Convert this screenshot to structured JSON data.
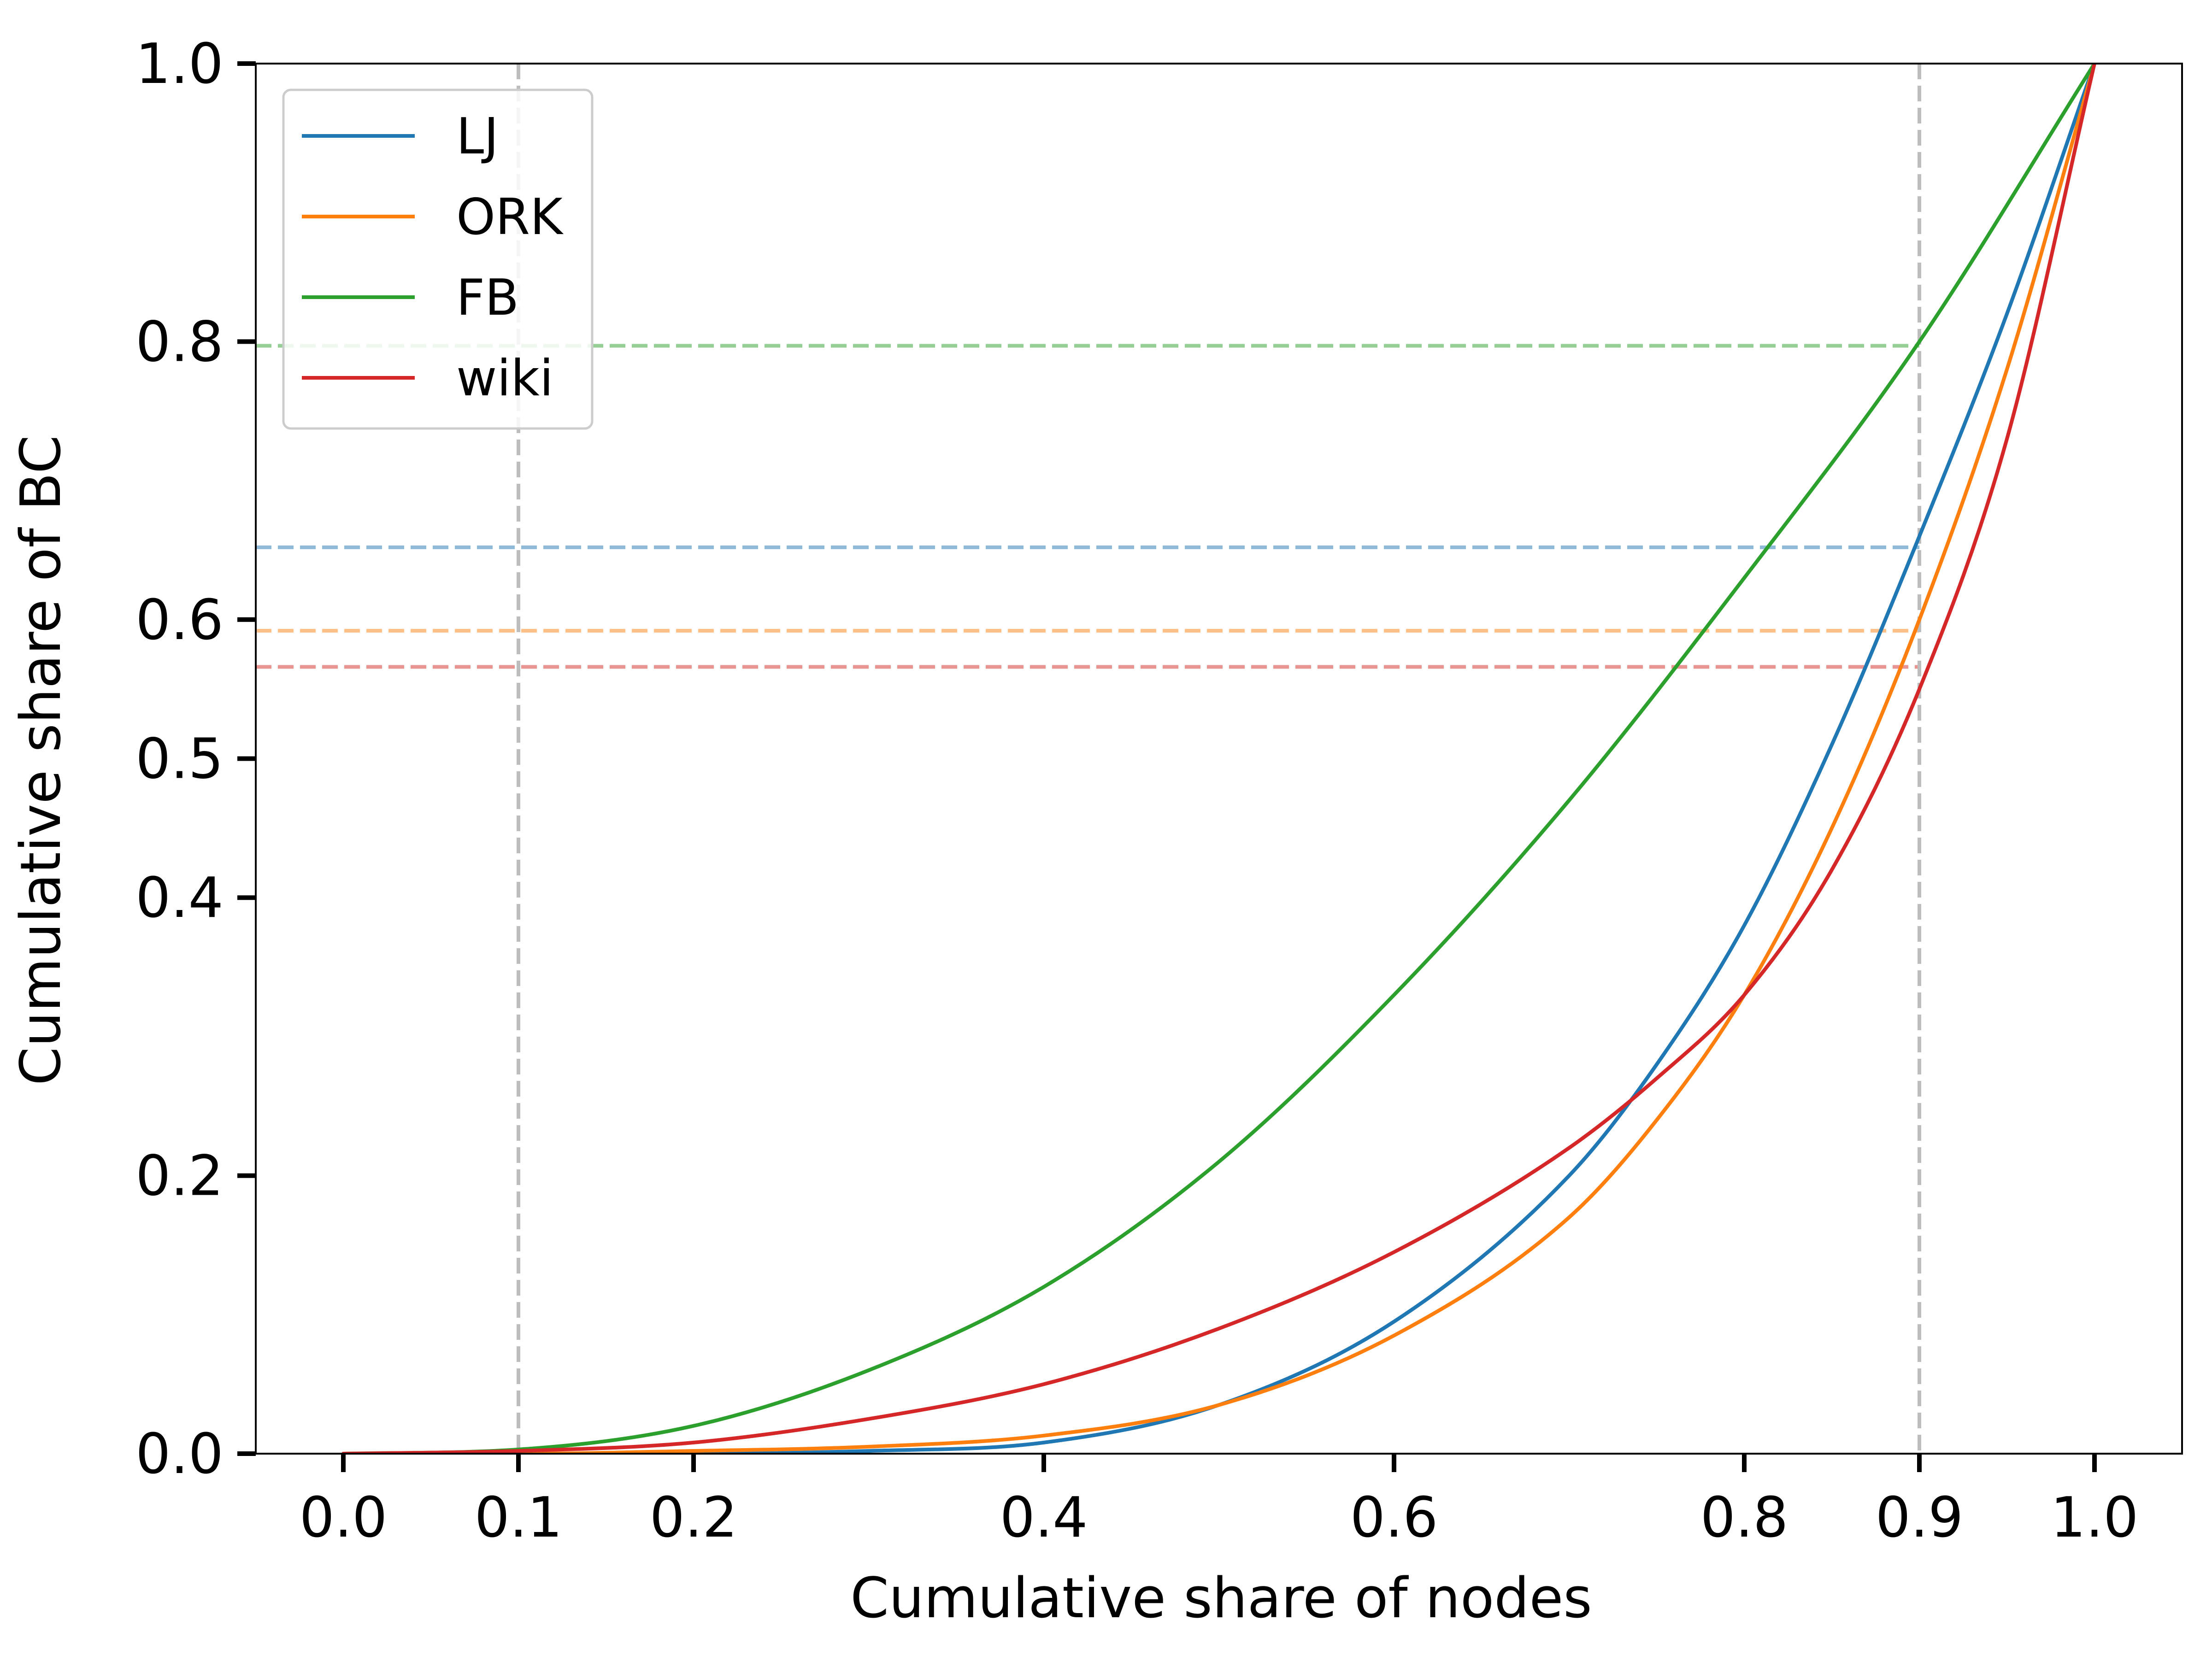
{
  "chart_data": {
    "type": "line",
    "title": "",
    "xlabel": "Cumulative share of nodes",
    "ylabel": "Cumulative share of BC",
    "xlim": [
      -0.05,
      1.05
    ],
    "ylim": [
      0,
      1.0
    ],
    "x_ticks": [
      0.0,
      0.1,
      0.2,
      0.4,
      0.6,
      0.8,
      0.9,
      1.0
    ],
    "x_tick_labels": [
      "0.0",
      "0.1",
      "0.2",
      "0.4",
      "0.6",
      "0.8",
      "0.9",
      "1.0"
    ],
    "y_ticks": [
      0.0,
      0.2,
      0.4,
      0.5,
      0.6,
      0.8,
      1.0
    ],
    "y_tick_labels": [
      "0.0",
      "0.2",
      "0.4",
      "0.5",
      "0.6",
      "0.8",
      "1.0"
    ],
    "grid": false,
    "legend_position": "upper-left",
    "vertical_reference_lines": [
      0.1,
      0.9
    ],
    "reference_line_color": "#bdbdbd",
    "series": [
      {
        "name": "LJ",
        "color": "#1f77b4",
        "x": [
          0.0,
          0.1,
          0.2,
          0.3,
          0.4,
          0.5,
          0.6,
          0.7,
          0.75,
          0.8,
          0.85,
          0.9,
          0.95,
          1.0
        ],
        "y": [
          0.0,
          0.0,
          0.0,
          0.002,
          0.008,
          0.035,
          0.095,
          0.2,
          0.28,
          0.38,
          0.51,
          0.66,
          0.82,
          1.0
        ],
        "reference_y": 0.652
      },
      {
        "name": "ORK",
        "color": "#ff7f0e",
        "x": [
          0.0,
          0.1,
          0.2,
          0.3,
          0.4,
          0.5,
          0.6,
          0.7,
          0.75,
          0.8,
          0.85,
          0.9,
          0.95,
          1.0
        ],
        "y": [
          0.0,
          0.0,
          0.002,
          0.005,
          0.013,
          0.035,
          0.085,
          0.17,
          0.24,
          0.33,
          0.45,
          0.6,
          0.78,
          1.0
        ],
        "reference_y": 0.592
      },
      {
        "name": "FB",
        "color": "#2ca02c",
        "x": [
          0.0,
          0.1,
          0.2,
          0.3,
          0.4,
          0.5,
          0.6,
          0.7,
          0.8,
          0.9,
          1.0
        ],
        "y": [
          0.0,
          0.003,
          0.02,
          0.06,
          0.12,
          0.21,
          0.33,
          0.47,
          0.63,
          0.8,
          1.0
        ],
        "reference_y": 0.797
      },
      {
        "name": "wiki",
        "color": "#d62728",
        "x": [
          0.0,
          0.1,
          0.2,
          0.3,
          0.4,
          0.5,
          0.6,
          0.7,
          0.75,
          0.8,
          0.85,
          0.9,
          0.95,
          1.0
        ],
        "y": [
          0.0,
          0.002,
          0.008,
          0.025,
          0.05,
          0.09,
          0.145,
          0.22,
          0.27,
          0.33,
          0.42,
          0.55,
          0.73,
          1.0
        ],
        "reference_y": 0.566
      }
    ]
  }
}
